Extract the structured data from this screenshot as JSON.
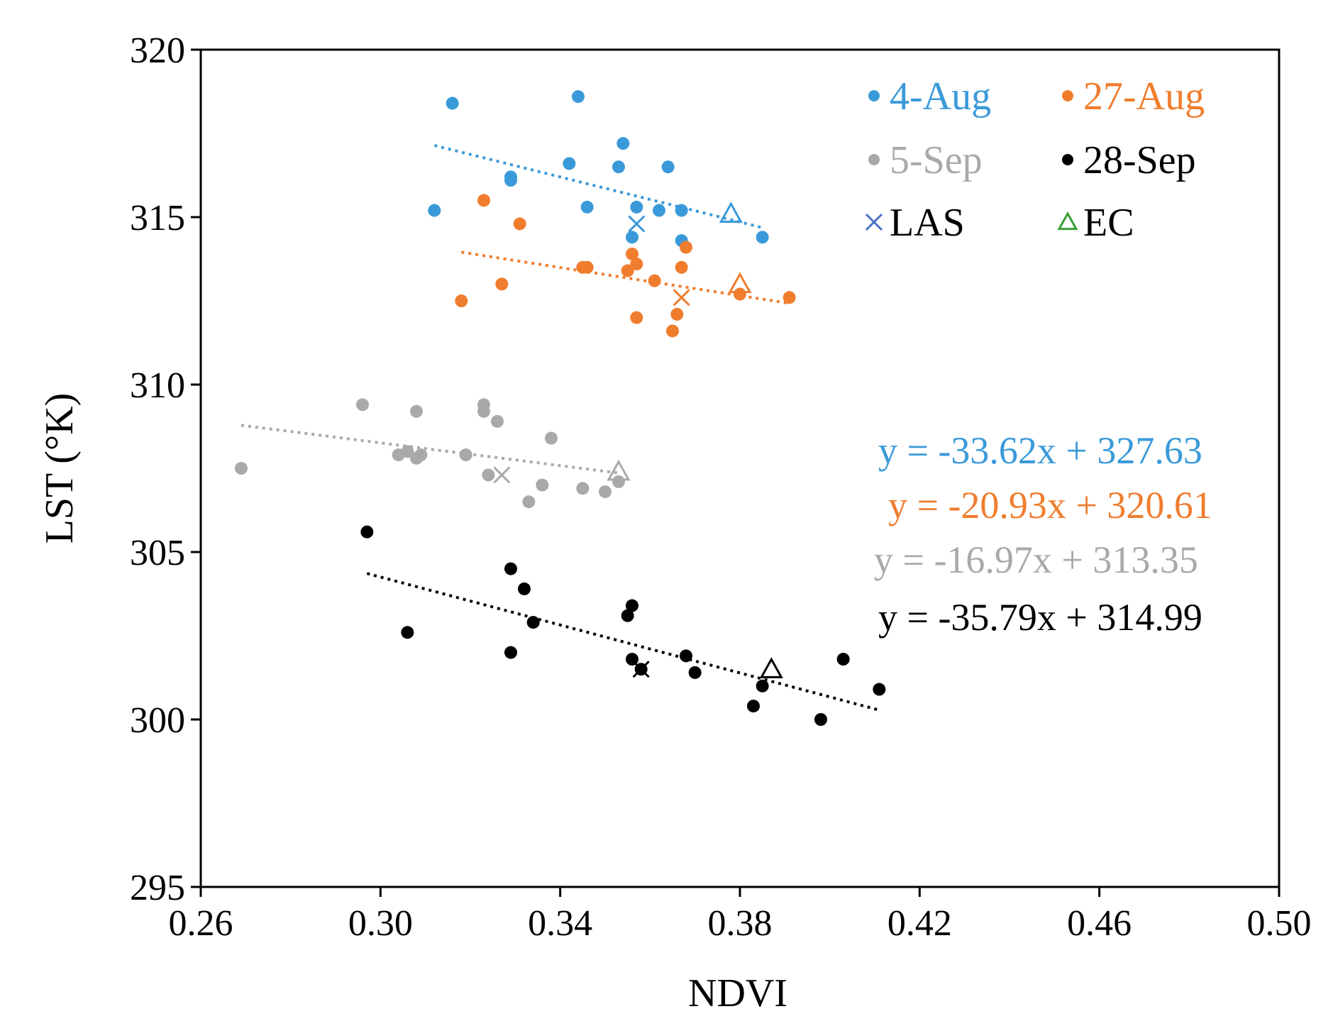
{
  "chart_data": {
    "type": "scatter",
    "xlabel": "NDVI",
    "ylabel": "LST  (°K)",
    "xlim": [
      0.26,
      0.5
    ],
    "ylim": [
      295,
      320
    ],
    "xticks": [
      "0.26",
      "0.30",
      "0.34",
      "0.38",
      "0.42",
      "0.46",
      "0.50"
    ],
    "yticks": [
      "295",
      "300",
      "305",
      "310",
      "315",
      "320"
    ],
    "xtick_values": [
      0.26,
      0.3,
      0.34,
      0.38,
      0.42,
      0.46,
      0.5
    ],
    "ytick_values": [
      295,
      300,
      305,
      310,
      315,
      320
    ],
    "series": [
      {
        "name": "4-Aug",
        "color": "#3a9ad9",
        "x": [
          0.312,
          0.316,
          0.329,
          0.329,
          0.342,
          0.344,
          0.346,
          0.353,
          0.354,
          0.356,
          0.357,
          0.362,
          0.364,
          0.367,
          0.367,
          0.385
        ],
        "y": [
          315.2,
          318.4,
          316.2,
          316.1,
          316.6,
          318.6,
          315.3,
          316.5,
          317.2,
          314.4,
          315.3,
          315.2,
          316.5,
          314.3,
          315.2,
          314.4
        ],
        "trend": {
          "slope": -33.62,
          "intercept": 327.63,
          "x_range": [
            0.312,
            0.385
          ]
        },
        "las": [
          0.357,
          314.8
        ],
        "ec": [
          0.378,
          315.1
        ]
      },
      {
        "name": "27-Aug",
        "color": "#f07d2e",
        "x": [
          0.318,
          0.323,
          0.327,
          0.331,
          0.345,
          0.346,
          0.355,
          0.356,
          0.357,
          0.357,
          0.361,
          0.365,
          0.366,
          0.367,
          0.368,
          0.38,
          0.391
        ],
        "y": [
          312.5,
          315.5,
          313.0,
          314.8,
          313.5,
          313.5,
          313.4,
          313.9,
          312.0,
          313.6,
          313.1,
          311.6,
          312.1,
          313.5,
          314.1,
          312.7,
          312.6
        ],
        "trend": {
          "slope": -20.93,
          "intercept": 320.61,
          "x_range": [
            0.318,
            0.391
          ]
        },
        "las": [
          0.367,
          312.6
        ],
        "ec": [
          0.38,
          313.0
        ]
      },
      {
        "name": "5-Sep",
        "color": "#a9a9a9",
        "x": [
          0.269,
          0.296,
          0.304,
          0.306,
          0.308,
          0.308,
          0.309,
          0.319,
          0.323,
          0.323,
          0.324,
          0.326,
          0.333,
          0.336,
          0.338,
          0.345,
          0.35,
          0.353
        ],
        "y": [
          307.5,
          309.4,
          307.9,
          308.0,
          309.2,
          307.8,
          307.9,
          307.9,
          309.4,
          309.2,
          307.3,
          308.9,
          306.5,
          307.0,
          308.4,
          306.9,
          306.8,
          307.1
        ],
        "trend": {
          "slope": -16.97,
          "intercept": 313.35,
          "x_range": [
            0.269,
            0.353
          ]
        },
        "las": [
          0.327,
          307.3
        ],
        "ec": [
          0.353,
          307.4
        ]
      },
      {
        "name": "28-Sep",
        "color": "#000000",
        "x": [
          0.297,
          0.306,
          0.329,
          0.329,
          0.332,
          0.334,
          0.355,
          0.356,
          0.356,
          0.358,
          0.368,
          0.37,
          0.383,
          0.385,
          0.398,
          0.403,
          0.411
        ],
        "y": [
          305.6,
          302.6,
          304.5,
          302.0,
          303.9,
          302.9,
          303.1,
          303.4,
          301.8,
          301.5,
          301.9,
          301.4,
          300.4,
          301.0,
          300.0,
          301.8,
          300.9
        ],
        "trend": {
          "slope": -35.79,
          "intercept": 314.99,
          "x_range": [
            0.297,
            0.411
          ]
        },
        "las": [
          0.358,
          301.5
        ],
        "ec": [
          0.387,
          301.5
        ]
      }
    ],
    "legend": [
      {
        "label": "4-Aug",
        "marker": "dot",
        "color": "#3a9ad9",
        "text_color": "#3a9ad9"
      },
      {
        "label": "27-Aug",
        "marker": "dot",
        "color": "#f07d2e",
        "text_color": "#f07d2e"
      },
      {
        "label": "5-Sep",
        "marker": "dot",
        "color": "#a9a9a9",
        "text_color": "#a9a9a9"
      },
      {
        "label": "28-Sep",
        "marker": "dot",
        "color": "#000000",
        "text_color": "#000000"
      },
      {
        "label": "LAS",
        "marker": "x",
        "color": "#4a6fc7",
        "text_color": "#000000"
      },
      {
        "label": "EC",
        "marker": "triangle",
        "color": "#3aa13a",
        "text_color": "#000000"
      }
    ],
    "equations": [
      {
        "text": "y = -33.62x + 327.63",
        "color": "#3a9ad9"
      },
      {
        "text": "y = -20.93x + 320.61",
        "color": "#f07d2e"
      },
      {
        "text": "y = -16.97x + 313.35",
        "color": "#a9a9a9"
      },
      {
        "text": "y = -35.79x + 314.99",
        "color": "#000000"
      }
    ]
  }
}
